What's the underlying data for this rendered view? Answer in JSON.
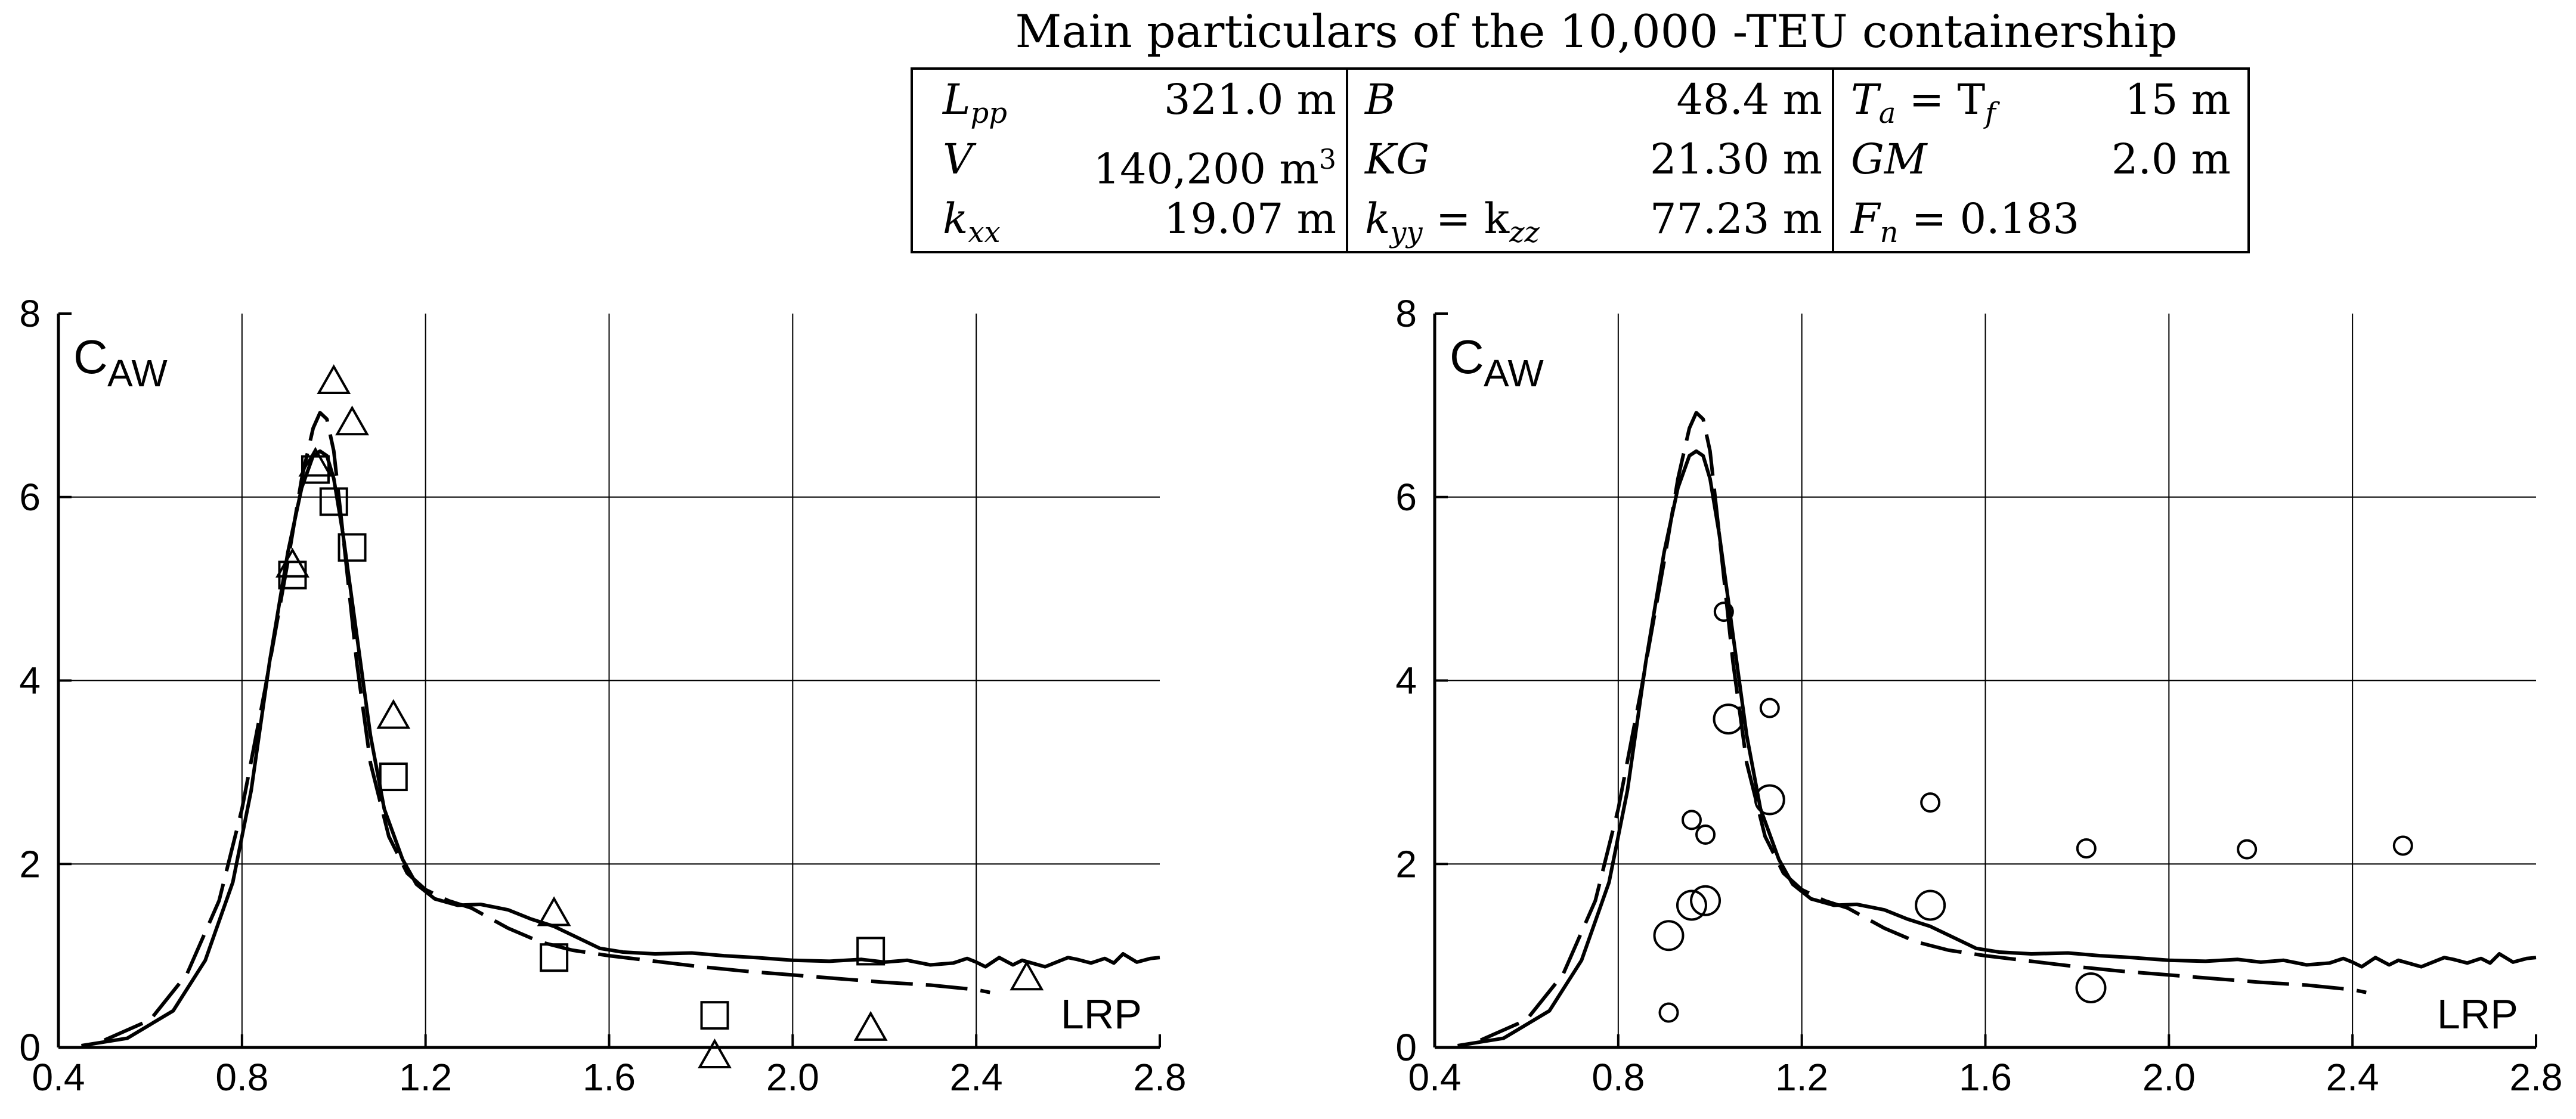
{
  "table": {
    "title": "Main particulars of the 10,000 -TEU containership",
    "rows": [
      [
        {
          "sym": "L",
          "sub": "pp",
          "val": "321.0 m"
        },
        {
          "sym": "B",
          "val": "48.4 m"
        },
        {
          "sym": "T",
          "sub": "a",
          "eq": "= T",
          "sub2": "f",
          "val": "15 m"
        }
      ],
      [
        {
          "sym": "V",
          "val": "140,200 m",
          "sup": "3"
        },
        {
          "sym": "KG",
          "val": "21.30 m"
        },
        {
          "sym": "GM",
          "val": "2.0 m"
        }
      ],
      [
        {
          "sym": "k",
          "sub": "xx",
          "val": "19.07 m"
        },
        {
          "sym": "k",
          "sub": "yy",
          "eq": "= k",
          "sub2": "zz",
          "val": "77.23 m"
        },
        {
          "sym": "F",
          "sub": "n",
          "eq": "= 0.183"
        }
      ]
    ]
  },
  "chart_data": [
    {
      "type": "line",
      "ylabel": "C",
      "ylabel_sub": "AW",
      "xlabel": "LRP",
      "xlim": [
        0.4,
        2.8
      ],
      "ylim": [
        0,
        8
      ],
      "xticks": [
        "0.4",
        "0.8",
        "1.2",
        "1.6",
        "2.0",
        "2.4",
        "2.8"
      ],
      "yticks": [
        "0",
        "2",
        "4",
        "6",
        "8"
      ],
      "grid": true,
      "series": [
        {
          "name": "solid curve",
          "style": "solid",
          "x": [
            0.45,
            0.55,
            0.65,
            0.72,
            0.78,
            0.82,
            0.86,
            0.9,
            0.93,
            0.955,
            0.97,
            0.985,
            1.0,
            1.02,
            1.05,
            1.08,
            1.11,
            1.15,
            1.18,
            1.22,
            1.27,
            1.32,
            1.38,
            1.43,
            1.48,
            1.53,
            1.58,
            1.63,
            1.7,
            1.78,
            1.85,
            1.92,
            2.0,
            2.08,
            2.15,
            2.2,
            2.25,
            2.3,
            2.35,
            2.38,
            2.4,
            2.42,
            2.45,
            2.48,
            2.5,
            2.55,
            2.6,
            2.62,
            2.65,
            2.68,
            2.7,
            2.72,
            2.75,
            2.78,
            2.8
          ],
          "y": [
            0.02,
            0.1,
            0.4,
            0.95,
            1.8,
            2.8,
            4.2,
            5.4,
            6.1,
            6.45,
            6.5,
            6.45,
            6.2,
            5.6,
            4.5,
            3.4,
            2.6,
            2.05,
            1.78,
            1.62,
            1.55,
            1.56,
            1.5,
            1.4,
            1.32,
            1.2,
            1.08,
            1.04,
            1.02,
            1.03,
            1.0,
            0.98,
            0.95,
            0.94,
            0.96,
            0.93,
            0.95,
            0.9,
            0.92,
            0.97,
            0.93,
            0.88,
            0.98,
            0.9,
            0.95,
            0.88,
            0.98,
            0.96,
            0.92,
            0.97,
            0.92,
            1.02,
            0.93,
            0.97,
            0.98
          ]
        },
        {
          "name": "dashed curve",
          "style": "dashed",
          "x": [
            0.5,
            0.6,
            0.68,
            0.75,
            0.8,
            0.85,
            0.9,
            0.93,
            0.955,
            0.97,
            0.985,
            1.0,
            1.02,
            1.05,
            1.08,
            1.12,
            1.16,
            1.2,
            1.25,
            1.3,
            1.38,
            1.45,
            1.52,
            1.6,
            1.7,
            1.8,
            1.9,
            2.0,
            2.1,
            2.2,
            2.3,
            2.4,
            2.43
          ],
          "y": [
            0.08,
            0.3,
            0.8,
            1.6,
            2.6,
            3.9,
            5.3,
            6.2,
            6.75,
            6.92,
            6.85,
            6.5,
            5.6,
            4.2,
            3.1,
            2.3,
            1.9,
            1.72,
            1.6,
            1.52,
            1.3,
            1.15,
            1.06,
            1.0,
            0.94,
            0.88,
            0.83,
            0.79,
            0.75,
            0.71,
            0.68,
            0.63,
            0.6
          ]
        },
        {
          "name": "triangles",
          "marker": "triangle",
          "x": [
            0.91,
            0.96,
            1.0,
            1.04,
            1.13,
            1.48,
            1.83,
            2.17,
            2.51
          ],
          "y": [
            5.25,
            6.35,
            7.25,
            6.8,
            3.6,
            1.45,
            -0.1,
            0.2,
            0.75
          ]
        },
        {
          "name": "squares",
          "marker": "square",
          "x": [
            0.91,
            0.96,
            1.0,
            1.04,
            1.13,
            1.48,
            1.83,
            2.17
          ],
          "y": [
            5.15,
            6.3,
            5.95,
            5.45,
            2.95,
            0.98,
            0.35,
            1.05
          ]
        }
      ]
    },
    {
      "type": "line",
      "ylabel": "C",
      "ylabel_sub": "AW",
      "xlabel": "LRP",
      "xlim": [
        0.4,
        2.8
      ],
      "ylim": [
        0,
        8
      ],
      "xticks": [
        "0.4",
        "0.8",
        "1.2",
        "1.6",
        "2.0",
        "2.4",
        "2.8"
      ],
      "yticks": [
        "0",
        "2",
        "4",
        "6",
        "8"
      ],
      "grid": true,
      "series": [
        {
          "name": "solid curve",
          "style": "solid",
          "same_as": "left"
        },
        {
          "name": "dashed curve",
          "style": "dashed",
          "same_as": "left"
        },
        {
          "name": "small circles",
          "marker": "circle-small",
          "x": [
            0.91,
            0.96,
            0.99,
            1.03,
            1.13,
            1.48,
            1.82,
            2.17,
            2.51
          ],
          "y": [
            0.38,
            2.48,
            2.32,
            4.75,
            3.7,
            2.67,
            2.17,
            2.16,
            2.2
          ]
        },
        {
          "name": "large circles",
          "marker": "circle-large",
          "x": [
            0.91,
            0.96,
            0.99,
            1.04,
            1.13,
            1.48,
            1.83
          ],
          "y": [
            1.22,
            1.55,
            1.6,
            3.58,
            2.7,
            1.55,
            0.65
          ]
        }
      ]
    }
  ]
}
